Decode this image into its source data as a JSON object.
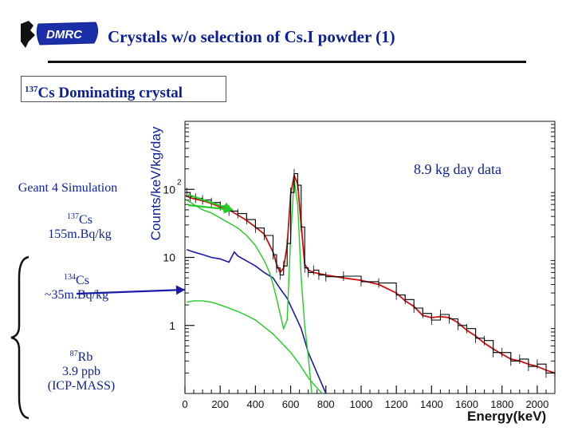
{
  "header": {
    "title": "Crystals w/o selection of Cs.I powder (1)",
    "logo_text": "DMRC"
  },
  "label_box": {
    "superscript": "137",
    "text": "Cs Dominating crystal"
  },
  "annotations": {
    "simulation": "Geant 4 Simulation",
    "cs137_sup": "137",
    "cs137_name": "Cs",
    "cs137_activity": "155m.Bq/kg",
    "cs134_sup": "134",
    "cs134_name": "Cs",
    "cs134_activity": "~35m.Bq/kg",
    "rb87_sup": "87",
    "rb87_name": "Rb",
    "rb87_conc": "3.9 ppb",
    "rb87_method": "(ICP-MASS)",
    "data_note": "8.9 kg day data"
  },
  "colors": {
    "title": "#0b1f96",
    "data": "#000000",
    "total_fit": "#cc1010",
    "cs137": "#22cc22",
    "cs134": "#1a1aa8",
    "rb87": "#22cc22",
    "arrow_green": "#22cc22",
    "arrow_blue": "#1a1aa8"
  },
  "chart_data": {
    "type": "line",
    "xlabel": "Energy(keV)",
    "ylabel": "Counts/keV/kg/day",
    "xlim": [
      0,
      2100
    ],
    "ylim": [
      0.1,
      1000
    ],
    "yscale": "log",
    "x_ticks": [
      "0",
      "200",
      "400",
      "600",
      "800",
      "1000",
      "1200",
      "1400",
      "1600",
      "1800",
      "2000"
    ],
    "y_ticks": [
      {
        "base": "10",
        "exp": "2",
        "value": 100
      },
      {
        "base": "10",
        "exp": "",
        "value": 10
      },
      {
        "base": "1",
        "exp": "",
        "value": 1
      }
    ],
    "series": [
      {
        "key": "total",
        "x": [
          10,
          30,
          60,
          100,
          150,
          200,
          250,
          300,
          350,
          400,
          450,
          500,
          520,
          540,
          560,
          580,
          600,
          620,
          640,
          660,
          680,
          700,
          730,
          760,
          800,
          900,
          1000,
          1100,
          1200,
          1250,
          1300,
          1350,
          1400,
          1450,
          1500,
          1550,
          1600,
          1650,
          1700,
          1750,
          1800,
          1850,
          1900,
          1950,
          2000,
          2050,
          2100
        ],
        "y": [
          80,
          75,
          72,
          68,
          62,
          55,
          50,
          42,
          35,
          28,
          22,
          12,
          8,
          6,
          7,
          15,
          85,
          160,
          120,
          30,
          8,
          6.5,
          6,
          5.8,
          5.5,
          5,
          4.6,
          4.0,
          3.0,
          2.3,
          1.9,
          1.4,
          1.3,
          1.35,
          1.3,
          1.1,
          0.85,
          0.7,
          0.55,
          0.45,
          0.38,
          0.32,
          0.3,
          0.27,
          0.25,
          0.22,
          0.2
        ]
      },
      {
        "key": "data",
        "x": [
          10,
          30,
          60,
          100,
          150,
          200,
          250,
          300,
          350,
          400,
          450,
          500,
          520,
          540,
          560,
          580,
          600,
          620,
          640,
          660,
          680,
          700,
          730,
          760,
          800,
          900,
          1000,
          1100,
          1200,
          1250,
          1300,
          1350,
          1400,
          1450,
          1500,
          1550,
          1600,
          1650,
          1700,
          1750,
          1800,
          1850,
          1900,
          1950,
          2000,
          2050,
          2100
        ],
        "y": [
          90,
          78,
          74,
          70,
          64,
          57,
          48,
          44,
          36,
          27,
          21,
          11,
          7,
          5.5,
          7.5,
          16,
          90,
          170,
          115,
          28,
          7,
          6,
          6.5,
          5.5,
          5.2,
          5.3,
          4.4,
          4.2,
          2.8,
          2.4,
          1.8,
          1.5,
          1.2,
          1.45,
          1.25,
          1.0,
          0.9,
          0.65,
          0.6,
          0.4,
          0.4,
          0.3,
          0.32,
          0.25,
          0.27,
          0.2,
          0.18
        ]
      },
      {
        "key": "cs137",
        "x": [
          10,
          50,
          100,
          150,
          200,
          250,
          300,
          350,
          400,
          450,
          480,
          500,
          520,
          540,
          560,
          580,
          600,
          620,
          640,
          660,
          680,
          700,
          720
        ],
        "y": [
          70,
          60,
          50,
          45,
          38,
          32,
          27,
          21,
          15,
          9,
          6,
          4,
          2.5,
          1.5,
          0.9,
          1.2,
          20,
          140,
          60,
          5,
          1,
          0.35,
          0.1
        ]
      },
      {
        "key": "cs134",
        "x": [
          10,
          50,
          100,
          150,
          200,
          250,
          280,
          300,
          330,
          400,
          450,
          500,
          540,
          580,
          620,
          660,
          700,
          750,
          800
        ],
        "y": [
          13,
          12,
          11,
          10,
          9.5,
          8.5,
          12,
          10.5,
          9.5,
          7.5,
          6,
          5,
          3.5,
          2.5,
          1.5,
          0.9,
          0.4,
          0.2,
          0.1
        ]
      },
      {
        "key": "rb87",
        "x": [
          10,
          50,
          100,
          150,
          200,
          250,
          300,
          350,
          400,
          450,
          500,
          550,
          600,
          650,
          700,
          750,
          780
        ],
        "y": [
          2.2,
          2.3,
          2.3,
          2.2,
          2.0,
          1.8,
          1.6,
          1.4,
          1.2,
          0.95,
          0.75,
          0.55,
          0.4,
          0.27,
          0.17,
          0.12,
          0.1
        ]
      }
    ]
  }
}
